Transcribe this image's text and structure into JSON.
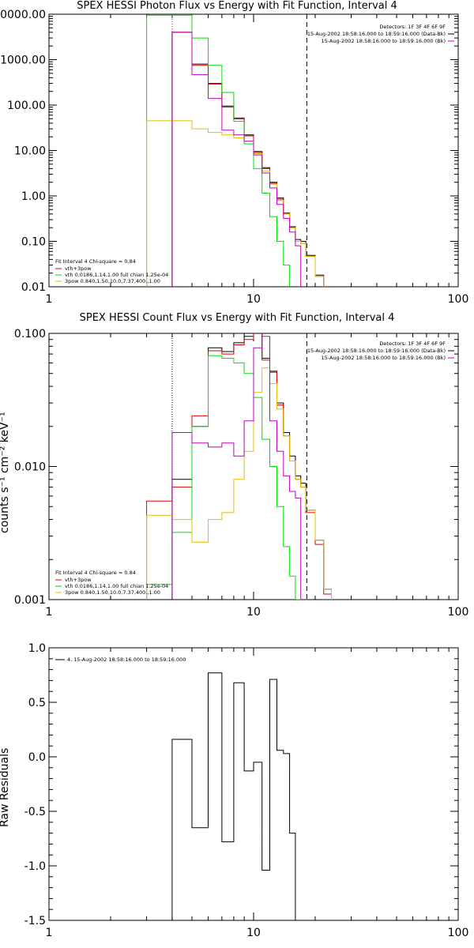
{
  "chart_data": [
    {
      "type": "step-line",
      "title": "SPEX HESSI Photon Flux vs Energy with Fit Function, Interval 4",
      "xscale": "log",
      "yscale": "log",
      "xlim": [
        1,
        100
      ],
      "ylim": [
        0.01,
        10000
      ],
      "xticks": [
        "1",
        "10",
        "100"
      ],
      "yticks": [
        "0.01",
        "0.10",
        "1.00",
        "10.00",
        "100.00",
        "1000.00",
        "10000.00"
      ],
      "header": [
        "Detectors: 1F 3F 4F 6F 9F",
        "15-Aug-2002 18:58:16.000 to 18:59:16.000 (Data-Bk)",
        "15-Aug-2002 18:58:16.000 to 18:59:16.000 (Bk)"
      ],
      "legend_title": "Fit Interval  4    Chi-square = 0.84",
      "legend": [
        "vth+3pow",
        "vth 0.0186,1.14,1.00  full chian 1.25e-04",
        "3pow 0.840,1.50,10.0,7.37,400.,1.00"
      ],
      "edges": [
        3.0,
        4.0,
        5.0,
        6.0,
        7.0,
        8.0,
        9.0,
        10.0,
        11.0,
        12.0,
        13.0,
        14.0,
        15.0,
        16.0,
        17.0,
        18.0,
        20.0,
        22.0,
        24.0,
        26.0
      ],
      "vlines": [
        {
          "x": 4.0,
          "style": "dotted",
          "color": "#c000c0"
        },
        {
          "x": 18.2,
          "style": "dashed",
          "color": "#000000"
        }
      ],
      "series": [
        {
          "name": "Data-Bk",
          "color": "#000000",
          "values": [
            null,
            4000,
            800,
            300,
            95,
            50,
            22,
            9.5,
            4.2,
            2.0,
            0.9,
            0.42,
            0.21,
            0.11,
            0.1,
            0.049,
            0.018,
            0.009,
            null
          ]
        },
        {
          "name": "vth+3pow",
          "color": "#e00000",
          "values": [
            null,
            4000,
            750,
            290,
            90,
            52,
            21,
            9.0,
            4.0,
            1.9,
            0.85,
            0.4,
            0.2,
            0.1,
            0.09,
            0.047,
            0.017,
            0.009,
            null
          ]
        },
        {
          "name": "vth",
          "color": "#00e000",
          "values": [
            9500,
            9500,
            3000,
            750,
            190,
            44,
            14,
            4.0,
            1.15,
            0.35,
            0.1,
            0.03,
            0.009,
            0.009,
            null,
            null,
            null,
            null,
            null
          ]
        },
        {
          "name": "3pow",
          "color": "#e0c000",
          "values": [
            45,
            45,
            30,
            25,
            22,
            19,
            16,
            8.5,
            3.5,
            1.8,
            0.8,
            0.4,
            0.2,
            0.1,
            0.09,
            0.047,
            0.017,
            0.009,
            null
          ]
        },
        {
          "name": "Bk",
          "color": "#c000c0",
          "values": [
            null,
            4000,
            470,
            140,
            28,
            22,
            16,
            8.0,
            3.2,
            1.5,
            0.65,
            0.32,
            0.16,
            0.08,
            null,
            null,
            null,
            null,
            null
          ]
        }
      ]
    },
    {
      "type": "step-line",
      "title": "SPEX HESSI Count Flux vs Energy with Fit Function, Interval 4",
      "ylabel": "counts s⁻¹ cm⁻² keV⁻¹",
      "xscale": "log",
      "yscale": "log",
      "xlim": [
        1,
        100
      ],
      "ylim": [
        0.001,
        0.1
      ],
      "xticks": [
        "1",
        "10",
        "100"
      ],
      "yticks": [
        "0.001",
        "0.010",
        "0.100"
      ],
      "header": [
        "Detectors: 1F 3F 4F 6F 9F",
        "15-Aug-2002 18:58:16.000 to 18:59:16.000 (Data-Bk)",
        "15-Aug-2002 18:58:16.000 to 18:59:16.000 (Bk)"
      ],
      "legend_title": "Fit Interval  4    Chi-square = 0.84",
      "legend": [
        "vth+3pow",
        "vth 0.0186,1.14,1.00  full chian 1.25e-04",
        "3pow 0.840,1.50,10.0,7.37,400.,1.00"
      ],
      "edges": [
        3.0,
        4.0,
        5.0,
        6.0,
        7.0,
        8.0,
        9.0,
        10.0,
        11.0,
        12.0,
        13.0,
        14.0,
        15.0,
        16.0,
        17.0,
        18.0,
        20.0,
        22.0,
        24.0,
        26.0
      ],
      "vlines": [
        {
          "x": 4.0,
          "style": "dotted",
          "color": "#000000"
        },
        {
          "x": 18.2,
          "style": "dashed",
          "color": "#000000"
        }
      ],
      "series": [
        {
          "name": "Data-Bk",
          "color": "#000000",
          "values": [
            null,
            0.008,
            0.02,
            0.078,
            0.073,
            0.085,
            0.095,
            0.1,
            0.065,
            0.052,
            0.03,
            0.018,
            0.012,
            0.0085,
            0.0075,
            0.0047,
            0.0028,
            0.0012,
            null
          ]
        },
        {
          "name": "vth+3pow",
          "color": "#e00000",
          "values": [
            0.0055,
            0.007,
            0.024,
            0.074,
            0.07,
            0.082,
            0.09,
            0.102,
            0.063,
            0.051,
            0.029,
            0.017,
            0.011,
            0.008,
            0.007,
            0.0045,
            0.0026,
            0.0011,
            null
          ]
        },
        {
          "name": "vth",
          "color": "#00e000",
          "values": [
            0.0013,
            0.0032,
            0.02,
            0.068,
            0.065,
            0.06,
            0.05,
            0.033,
            0.016,
            0.01,
            0.005,
            0.0025,
            0.0015,
            0.001,
            null,
            null,
            null,
            null,
            null
          ]
        },
        {
          "name": "3pow",
          "color": "#e0c000",
          "values": [
            0.0043,
            0.004,
            0.0027,
            0.004,
            0.0045,
            0.008,
            0.013,
            0.036,
            0.055,
            0.042,
            0.027,
            0.017,
            0.011,
            0.008,
            0.007,
            0.0047,
            0.0028,
            0.0012,
            null
          ]
        },
        {
          "name": "Bk",
          "color": "#c000c0",
          "values": [
            null,
            0.018,
            0.015,
            0.014,
            0.015,
            0.012,
            0.022,
            0.078,
            0.095,
            0.022,
            0.013,
            0.0085,
            0.0065,
            0.0058,
            null,
            null,
            null,
            null,
            null
          ]
        }
      ]
    },
    {
      "type": "step-line",
      "title": "",
      "ylabel": "Raw Residuals",
      "xscale": "log",
      "yscale": "linear",
      "xlim": [
        1,
        100
      ],
      "ylim": [
        -1.5,
        1.0
      ],
      "xticks": [
        "1",
        "10",
        "100"
      ],
      "yticks": [
        "-1.5",
        "-1.0",
        "-0.5",
        "0.0",
        "0.5",
        "1.0"
      ],
      "legend": [
        "4. 15-Aug-2002 18:58:16.000 to 18:59:16.000"
      ],
      "edges": [
        4.0,
        5.0,
        6.0,
        7.0,
        8.0,
        9.0,
        10.0,
        11.0,
        12.0,
        13.0,
        14.0,
        15.0,
        16.0,
        17.0,
        18.3
      ],
      "series": [
        {
          "name": "4. 15-Aug-2002 18:58:16.000 to 18:59:16.000",
          "color": "#000000",
          "values": [
            0.16,
            -0.65,
            0.77,
            -0.78,
            0.68,
            -0.13,
            -0.05,
            -1.04,
            0.71,
            0.06,
            0.03,
            -0.7,
            -1.5,
            null
          ]
        }
      ]
    }
  ]
}
